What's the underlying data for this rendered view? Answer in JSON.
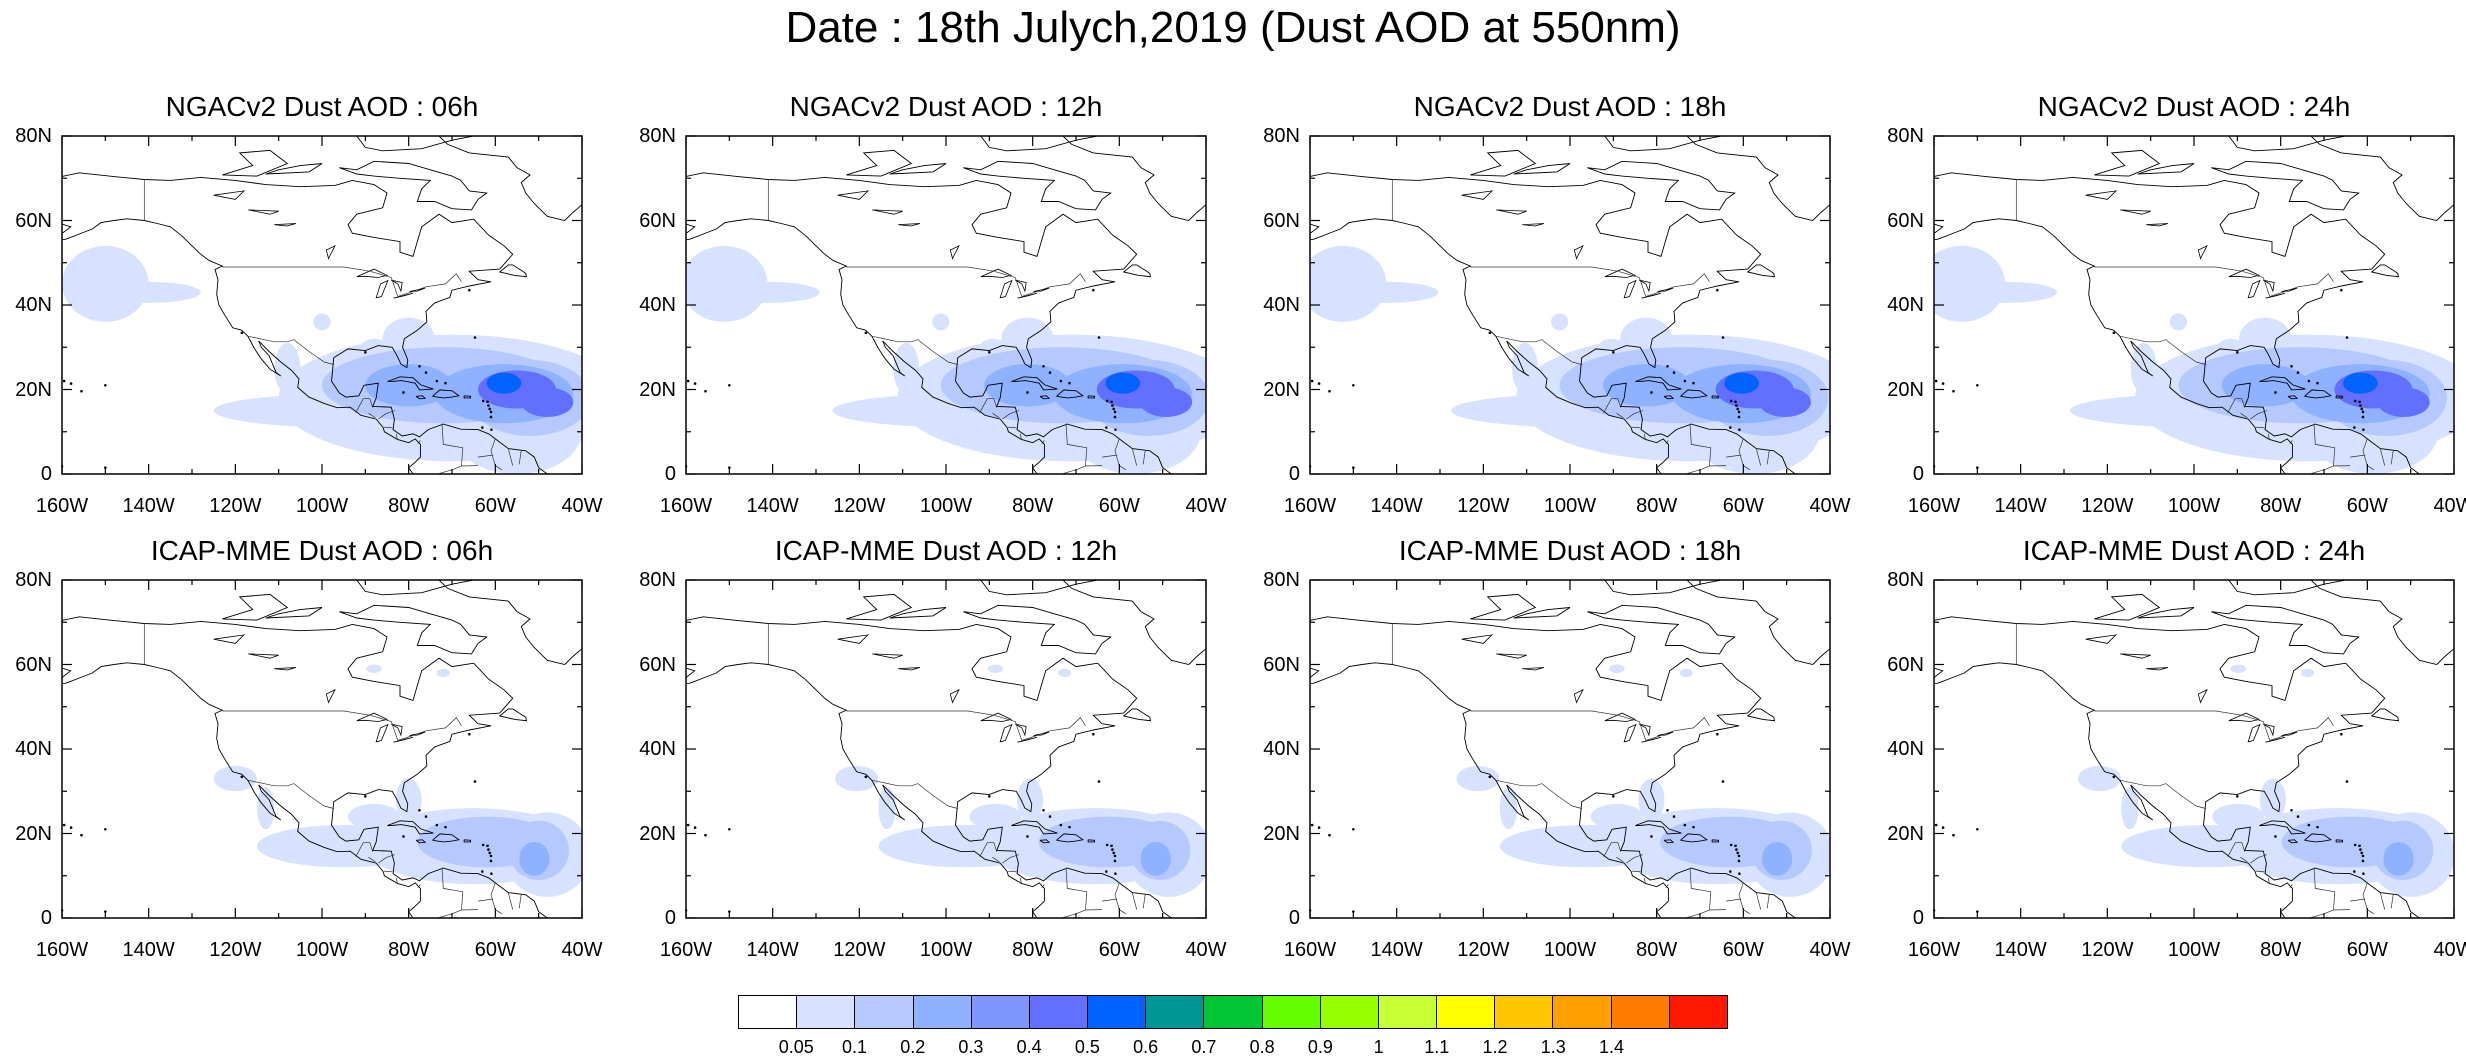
{
  "title": "Date : 18th Julych,2019 (Dust AOD at 550nm)",
  "panels": [
    {
      "title": "NGACv2 Dust AOD : 06h",
      "model": "NGACv2",
      "hour": "06h"
    },
    {
      "title": "NGACv2 Dust AOD : 12h",
      "model": "NGACv2",
      "hour": "12h"
    },
    {
      "title": "NGACv2 Dust AOD : 18h",
      "model": "NGACv2",
      "hour": "18h"
    },
    {
      "title": "NGACv2 Dust AOD : 24h",
      "model": "NGACv2",
      "hour": "24h"
    },
    {
      "title": "ICAP-MME Dust AOD : 06h",
      "model": "ICAP-MME",
      "hour": "06h"
    },
    {
      "title": "ICAP-MME Dust AOD : 12h",
      "model": "ICAP-MME",
      "hour": "12h"
    },
    {
      "title": "ICAP-MME Dust AOD : 18h",
      "model": "ICAP-MME",
      "hour": "18h"
    },
    {
      "title": "ICAP-MME Dust AOD : 24h",
      "model": "ICAP-MME",
      "hour": "24h"
    }
  ],
  "axes": {
    "lat_ticks": [
      "80N",
      "60N",
      "40N",
      "20N",
      "0"
    ],
    "lon_ticks": [
      "160W",
      "140W",
      "120W",
      "100W",
      "80W",
      "60W",
      "40W"
    ],
    "lat_range": [
      0,
      80
    ],
    "lon_range": [
      -160,
      -40
    ]
  },
  "colorbar": {
    "labels": [
      "0.05",
      "0.1",
      "0.2",
      "0.3",
      "0.4",
      "0.5",
      "0.6",
      "0.7",
      "0.8",
      "0.9",
      "1",
      "1.1",
      "1.2",
      "1.3",
      "1.4"
    ],
    "colors": [
      "#ffffff",
      "#d6e2ff",
      "#b5c9ff",
      "#8eb2ff",
      "#7f96ff",
      "#6370ff",
      "#0063ff",
      "#009696",
      "#00c633",
      "#63ff00",
      "#96ff00",
      "#c6ff33",
      "#ffff00",
      "#ffc600",
      "#ffa000",
      "#ff7c00",
      "#ff1900"
    ]
  },
  "field_colors": {
    "low": "#d6e2ff",
    "mid": "#b5c9ff",
    "high": "#8eb2ff",
    "core": "#6370ff",
    "peak": "#0063ff"
  }
}
